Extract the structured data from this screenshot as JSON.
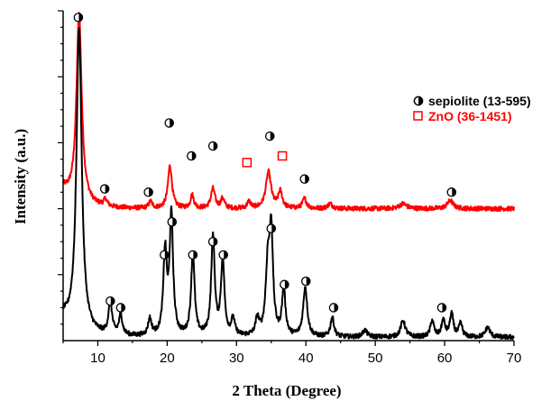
{
  "chart_data": {
    "type": "line",
    "title": "",
    "xlabel": "2 Theta (Degree)",
    "ylabel": "Intensity (a.u.)",
    "xlim": [
      5,
      70
    ],
    "ylim": [
      0,
      100
    ],
    "x_ticks": [
      10,
      20,
      30,
      40,
      50,
      60,
      70
    ],
    "y_tick_labels_shown": false,
    "grid": false,
    "legend_position": "top-right",
    "legend": [
      {
        "label": "sepiolite (13-595)",
        "marker": "circle-half-filled",
        "color": "#000000"
      },
      {
        "label": "ZnO (36-1451)",
        "marker": "open-square",
        "color": "#ff0000"
      }
    ],
    "series": [
      {
        "color": "#ff0000",
        "baseline": 40,
        "peaks": [
          {
            "x": 7.3,
            "h": 57,
            "w": 0.45
          },
          {
            "x": 11.1,
            "h": 2,
            "w": 0.3
          },
          {
            "x": 17.6,
            "h": 2,
            "w": 0.3
          },
          {
            "x": 20.4,
            "h": 13,
            "w": 0.35
          },
          {
            "x": 23.6,
            "h": 4,
            "w": 0.3
          },
          {
            "x": 26.6,
            "h": 6,
            "w": 0.35
          },
          {
            "x": 28.0,
            "h": 3,
            "w": 0.3
          },
          {
            "x": 31.8,
            "h": 2,
            "w": 0.3
          },
          {
            "x": 34.6,
            "h": 11,
            "w": 0.45
          },
          {
            "x": 36.3,
            "h": 5,
            "w": 0.35
          },
          {
            "x": 39.8,
            "h": 3,
            "w": 0.35
          },
          {
            "x": 43.5,
            "h": 1.5,
            "w": 0.4
          },
          {
            "x": 54.0,
            "h": 1.5,
            "w": 0.6
          },
          {
            "x": 60.8,
            "h": 2.5,
            "w": 0.5
          }
        ]
      },
      {
        "color": "#000000",
        "baseline": 1,
        "peaks": [
          {
            "x": 7.3,
            "h": 92,
            "w": 0.45
          },
          {
            "x": 11.8,
            "h": 10,
            "w": 0.3
          },
          {
            "x": 13.3,
            "h": 6,
            "w": 0.3
          },
          {
            "x": 17.5,
            "h": 5,
            "w": 0.3
          },
          {
            "x": 19.7,
            "h": 25,
            "w": 0.3
          },
          {
            "x": 20.6,
            "h": 36,
            "w": 0.3
          },
          {
            "x": 23.7,
            "h": 25,
            "w": 0.3
          },
          {
            "x": 26.6,
            "h": 30,
            "w": 0.3
          },
          {
            "x": 28.0,
            "h": 23,
            "w": 0.3
          },
          {
            "x": 29.5,
            "h": 5,
            "w": 0.3
          },
          {
            "x": 33.0,
            "h": 5,
            "w": 0.3
          },
          {
            "x": 34.5,
            "h": 20,
            "w": 0.35
          },
          {
            "x": 35.0,
            "h": 30,
            "w": 0.3
          },
          {
            "x": 36.8,
            "h": 14,
            "w": 0.3
          },
          {
            "x": 39.9,
            "h": 15,
            "w": 0.35
          },
          {
            "x": 43.8,
            "h": 6,
            "w": 0.3
          },
          {
            "x": 48.5,
            "h": 2,
            "w": 0.4
          },
          {
            "x": 54.0,
            "h": 5,
            "w": 0.4
          },
          {
            "x": 58.2,
            "h": 5,
            "w": 0.3
          },
          {
            "x": 59.8,
            "h": 5,
            "w": 0.3
          },
          {
            "x": 61.0,
            "h": 7,
            "w": 0.3
          },
          {
            "x": 62.3,
            "h": 4,
            "w": 0.3
          },
          {
            "x": 66.2,
            "h": 3,
            "w": 0.4
          }
        ]
      }
    ],
    "annotations": [
      {
        "x": 7.2,
        "y": 98,
        "marker": "circle"
      },
      {
        "x": 11.0,
        "y": 46,
        "marker": "circle"
      },
      {
        "x": 17.3,
        "y": 45,
        "marker": "circle"
      },
      {
        "x": 20.3,
        "y": 66,
        "marker": "circle"
      },
      {
        "x": 23.5,
        "y": 56,
        "marker": "circle"
      },
      {
        "x": 26.6,
        "y": 59,
        "marker": "circle"
      },
      {
        "x": 31.5,
        "y": 54,
        "marker": "square"
      },
      {
        "x": 34.8,
        "y": 62,
        "marker": "circle"
      },
      {
        "x": 36.6,
        "y": 56,
        "marker": "square"
      },
      {
        "x": 39.8,
        "y": 49,
        "marker": "circle"
      },
      {
        "x": 61.0,
        "y": 45,
        "marker": "circle"
      },
      {
        "x": 11.8,
        "y": 12,
        "marker": "circle"
      },
      {
        "x": 13.3,
        "y": 10,
        "marker": "circle"
      },
      {
        "x": 19.6,
        "y": 26,
        "marker": "circle"
      },
      {
        "x": 20.7,
        "y": 36,
        "marker": "circle"
      },
      {
        "x": 23.7,
        "y": 26,
        "marker": "circle"
      },
      {
        "x": 26.6,
        "y": 30,
        "marker": "circle"
      },
      {
        "x": 28.1,
        "y": 26,
        "marker": "circle"
      },
      {
        "x": 35.0,
        "y": 34,
        "marker": "circle"
      },
      {
        "x": 36.9,
        "y": 17,
        "marker": "circle"
      },
      {
        "x": 40.0,
        "y": 18,
        "marker": "circle"
      },
      {
        "x": 44.0,
        "y": 10,
        "marker": "circle"
      },
      {
        "x": 59.6,
        "y": 10,
        "marker": "circle"
      }
    ]
  }
}
